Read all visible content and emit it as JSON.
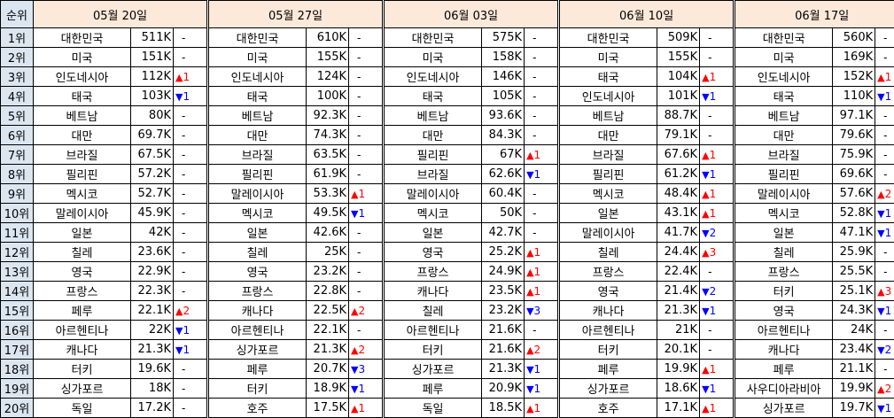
{
  "header": {
    "rank_label": "순위",
    "dates": [
      "05월 20일",
      "05월 27일",
      "06월 03일",
      "06월 10일",
      "06월 17일"
    ]
  },
  "ranks": [
    "1위",
    "2위",
    "3위",
    "4위",
    "5위",
    "6위",
    "7위",
    "8위",
    "9위",
    "10위",
    "11위",
    "12위",
    "13위",
    "14위",
    "15위",
    "16위",
    "17위",
    "18위",
    "19위",
    "20위"
  ],
  "colors": {
    "up": "#ff0000",
    "down": "#0000ff",
    "date_header_bg": "#fde9d9",
    "rank_bg": "#dce6f1"
  },
  "symbols": {
    "up": "▲",
    "down": "▼",
    "none": "-"
  },
  "weeks": [
    {
      "rows": [
        {
          "country": "대한민국",
          "value": "511K",
          "change": "-"
        },
        {
          "country": "미국",
          "value": "151K",
          "change": "-"
        },
        {
          "country": "인도네시아",
          "value": "112K",
          "change": "up",
          "amount": "1"
        },
        {
          "country": "태국",
          "value": "103K",
          "change": "down",
          "amount": "1"
        },
        {
          "country": "베트남",
          "value": "80K",
          "change": "-"
        },
        {
          "country": "대만",
          "value": "69.7K",
          "change": "-"
        },
        {
          "country": "브라질",
          "value": "67.5K",
          "change": "-"
        },
        {
          "country": "필리핀",
          "value": "57.2K",
          "change": "-"
        },
        {
          "country": "멕시코",
          "value": "52.7K",
          "change": "-"
        },
        {
          "country": "말레이시아",
          "value": "45.9K",
          "change": "-"
        },
        {
          "country": "일본",
          "value": "42K",
          "change": "-"
        },
        {
          "country": "칠레",
          "value": "23.6K",
          "change": "-"
        },
        {
          "country": "영국",
          "value": "22.9K",
          "change": "-"
        },
        {
          "country": "프랑스",
          "value": "22.3K",
          "change": "-"
        },
        {
          "country": "페루",
          "value": "22.1K",
          "change": "up",
          "amount": "2"
        },
        {
          "country": "아르헨티나",
          "value": "22K",
          "change": "down",
          "amount": "1"
        },
        {
          "country": "캐나다",
          "value": "21.3K",
          "change": "down",
          "amount": "1"
        },
        {
          "country": "터키",
          "value": "19.6K",
          "change": "-"
        },
        {
          "country": "싱가포르",
          "value": "18K",
          "change": "-"
        },
        {
          "country": "독일",
          "value": "17.2K",
          "change": "-"
        }
      ]
    },
    {
      "rows": [
        {
          "country": "대한민국",
          "value": "610K",
          "change": "-"
        },
        {
          "country": "미국",
          "value": "155K",
          "change": "-"
        },
        {
          "country": "인도네시아",
          "value": "124K",
          "change": "-"
        },
        {
          "country": "태국",
          "value": "100K",
          "change": "-"
        },
        {
          "country": "베트남",
          "value": "92.3K",
          "change": "-"
        },
        {
          "country": "대만",
          "value": "74.3K",
          "change": "-"
        },
        {
          "country": "브라질",
          "value": "63.5K",
          "change": "-"
        },
        {
          "country": "필리핀",
          "value": "61.9K",
          "change": "-"
        },
        {
          "country": "말레이시아",
          "value": "53.3K",
          "change": "up",
          "amount": "1"
        },
        {
          "country": "멕시코",
          "value": "49.5K",
          "change": "down",
          "amount": "1"
        },
        {
          "country": "일본",
          "value": "42.6K",
          "change": "-"
        },
        {
          "country": "칠레",
          "value": "25K",
          "change": "-"
        },
        {
          "country": "영국",
          "value": "23.2K",
          "change": "-"
        },
        {
          "country": "프랑스",
          "value": "22.8K",
          "change": "-"
        },
        {
          "country": "캐나다",
          "value": "22.5K",
          "change": "up",
          "amount": "2"
        },
        {
          "country": "아르헨티나",
          "value": "22.1K",
          "change": "-"
        },
        {
          "country": "싱가포르",
          "value": "21.3K",
          "change": "up",
          "amount": "2"
        },
        {
          "country": "페루",
          "value": "20.7K",
          "change": "down",
          "amount": "3"
        },
        {
          "country": "터키",
          "value": "18.9K",
          "change": "down",
          "amount": "1"
        },
        {
          "country": "호주",
          "value": "17.5K",
          "change": "up",
          "amount": "1"
        }
      ]
    },
    {
      "rows": [
        {
          "country": "대한민국",
          "value": "575K",
          "change": "-"
        },
        {
          "country": "미국",
          "value": "158K",
          "change": "-"
        },
        {
          "country": "인도네시아",
          "value": "146K",
          "change": "-"
        },
        {
          "country": "태국",
          "value": "105K",
          "change": "-"
        },
        {
          "country": "베트남",
          "value": "93.6K",
          "change": "-"
        },
        {
          "country": "대만",
          "value": "84.3K",
          "change": "-"
        },
        {
          "country": "필리핀",
          "value": "67K",
          "change": "up",
          "amount": "1"
        },
        {
          "country": "브라질",
          "value": "62.6K",
          "change": "down",
          "amount": "1"
        },
        {
          "country": "말레이시아",
          "value": "60.4K",
          "change": "-"
        },
        {
          "country": "멕시코",
          "value": "50K",
          "change": "-"
        },
        {
          "country": "일본",
          "value": "42.7K",
          "change": "-"
        },
        {
          "country": "영국",
          "value": "25.2K",
          "change": "up",
          "amount": "1"
        },
        {
          "country": "프랑스",
          "value": "24.9K",
          "change": "up",
          "amount": "1"
        },
        {
          "country": "캐나다",
          "value": "23.5K",
          "change": "up",
          "amount": "1"
        },
        {
          "country": "칠레",
          "value": "23.2K",
          "change": "down",
          "amount": "3"
        },
        {
          "country": "아르헨티나",
          "value": "21.6K",
          "change": "-"
        },
        {
          "country": "터키",
          "value": "21.6K",
          "change": "up",
          "amount": "2"
        },
        {
          "country": "싱가포르",
          "value": "21.3K",
          "change": "down",
          "amount": "1"
        },
        {
          "country": "페루",
          "value": "20.9K",
          "change": "down",
          "amount": "1"
        },
        {
          "country": "독일",
          "value": "18.5K",
          "change": "up",
          "amount": "1"
        }
      ]
    },
    {
      "rows": [
        {
          "country": "대한민국",
          "value": "509K",
          "change": "-"
        },
        {
          "country": "미국",
          "value": "155K",
          "change": "-"
        },
        {
          "country": "태국",
          "value": "104K",
          "change": "up",
          "amount": "1"
        },
        {
          "country": "인도네시아",
          "value": "101K",
          "change": "down",
          "amount": "1"
        },
        {
          "country": "베트남",
          "value": "88.7K",
          "change": "-"
        },
        {
          "country": "대만",
          "value": "79.1K",
          "change": "-"
        },
        {
          "country": "브라질",
          "value": "67.6K",
          "change": "up",
          "amount": "1"
        },
        {
          "country": "필리핀",
          "value": "61.2K",
          "change": "down",
          "amount": "1"
        },
        {
          "country": "멕시코",
          "value": "48.4K",
          "change": "up",
          "amount": "1"
        },
        {
          "country": "일본",
          "value": "43.1K",
          "change": "up",
          "amount": "1"
        },
        {
          "country": "말레이시아",
          "value": "41.7K",
          "change": "down",
          "amount": "2"
        },
        {
          "country": "칠레",
          "value": "24.4K",
          "change": "up",
          "amount": "3"
        },
        {
          "country": "프랑스",
          "value": "22.4K",
          "change": "-"
        },
        {
          "country": "영국",
          "value": "21.4K",
          "change": "down",
          "amount": "2"
        },
        {
          "country": "캐나다",
          "value": "21.3K",
          "change": "down",
          "amount": "1"
        },
        {
          "country": "아르헨티나",
          "value": "21K",
          "change": "-"
        },
        {
          "country": "터키",
          "value": "20.1K",
          "change": "-"
        },
        {
          "country": "페루",
          "value": "19.9K",
          "change": "up",
          "amount": "1"
        },
        {
          "country": "싱가포르",
          "value": "18.6K",
          "change": "down",
          "amount": "1"
        },
        {
          "country": "호주",
          "value": "17.1K",
          "change": "up",
          "amount": "1"
        }
      ]
    },
    {
      "rows": [
        {
          "country": "대한민국",
          "value": "560K",
          "change": "-"
        },
        {
          "country": "미국",
          "value": "169K",
          "change": "-"
        },
        {
          "country": "인도네시아",
          "value": "152K",
          "change": "up",
          "amount": "1"
        },
        {
          "country": "태국",
          "value": "110K",
          "change": "down",
          "amount": "1"
        },
        {
          "country": "베트남",
          "value": "97.1K",
          "change": "-"
        },
        {
          "country": "대만",
          "value": "79.6K",
          "change": "-"
        },
        {
          "country": "브라질",
          "value": "75.9K",
          "change": "-"
        },
        {
          "country": "필리핀",
          "value": "69.6K",
          "change": "-"
        },
        {
          "country": "말레이시아",
          "value": "57.6K",
          "change": "up",
          "amount": "2"
        },
        {
          "country": "멕시코",
          "value": "52.8K",
          "change": "down",
          "amount": "1"
        },
        {
          "country": "일본",
          "value": "47.1K",
          "change": "down",
          "amount": "1"
        },
        {
          "country": "칠레",
          "value": "25.9K",
          "change": "-"
        },
        {
          "country": "프랑스",
          "value": "25.5K",
          "change": "-"
        },
        {
          "country": "터키",
          "value": "25.1K",
          "change": "up",
          "amount": "3"
        },
        {
          "country": "영국",
          "value": "24.3K",
          "change": "down",
          "amount": "1"
        },
        {
          "country": "아르헨티나",
          "value": "24K",
          "change": "-"
        },
        {
          "country": "캐나다",
          "value": "23.4K",
          "change": "down",
          "amount": "2"
        },
        {
          "country": "페루",
          "value": "21.1K",
          "change": "-"
        },
        {
          "country": "사우디아라비아",
          "value": "19.9K",
          "change": "up",
          "amount": "2"
        },
        {
          "country": "싱가포르",
          "value": "19.7K",
          "change": "down",
          "amount": "1"
        }
      ]
    }
  ]
}
